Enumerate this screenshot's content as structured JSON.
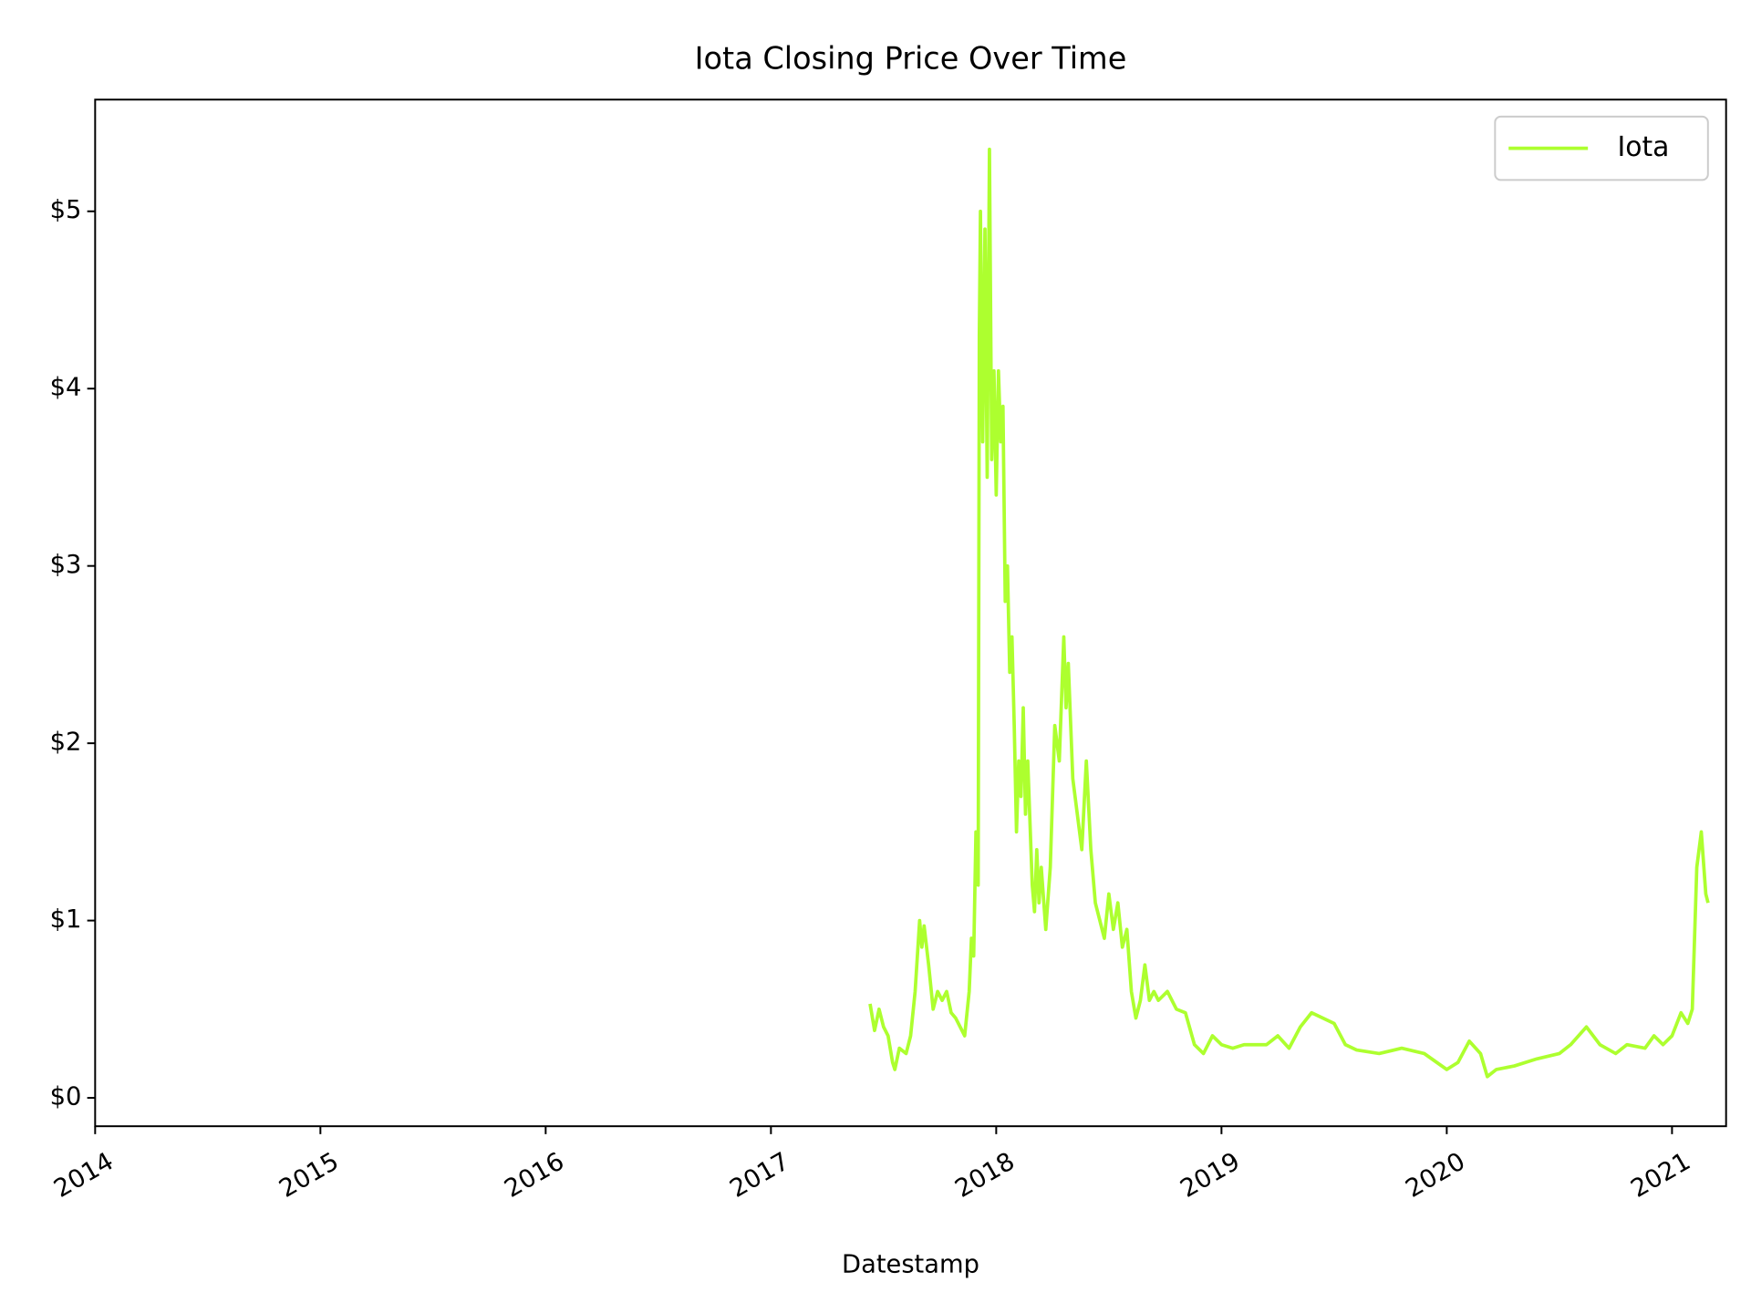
{
  "chart_data": {
    "type": "line",
    "title": "Iota Closing Price Over Time",
    "x_label": "Datestamp",
    "xlim": [
      2014,
      2021.24
    ],
    "xticks": [
      2014,
      2015,
      2016,
      2017,
      2018,
      2019,
      2020,
      2021
    ],
    "ylim": [
      -0.16,
      5.63
    ],
    "yticks": [
      {
        "value": 0,
        "label": "$0"
      },
      {
        "value": 1,
        "label": "$1"
      },
      {
        "value": 2,
        "label": "$2"
      },
      {
        "value": 3,
        "label": "$3"
      },
      {
        "value": 4,
        "label": "$4"
      },
      {
        "value": 5,
        "label": "$5"
      }
    ],
    "legend": "upper right",
    "grid": false,
    "x": [
      2017.44,
      2017.46,
      2017.48,
      2017.5,
      2017.52,
      2017.54,
      2017.55,
      2017.57,
      2017.6,
      2017.62,
      2017.64,
      2017.66,
      2017.67,
      2017.68,
      2017.7,
      2017.72,
      2017.74,
      2017.76,
      2017.78,
      2017.8,
      2017.82,
      2017.84,
      2017.86,
      2017.88,
      2017.89,
      2017.9,
      2017.91,
      2017.92,
      2017.925,
      2017.93,
      2017.94,
      2017.95,
      2017.96,
      2017.97,
      2017.98,
      2017.99,
      2018.0,
      2018.01,
      2018.02,
      2018.03,
      2018.04,
      2018.05,
      2018.06,
      2018.07,
      2018.08,
      2018.09,
      2018.1,
      2018.11,
      2018.12,
      2018.13,
      2018.14,
      2018.16,
      2018.17,
      2018.18,
      2018.19,
      2018.2,
      2018.22,
      2018.24,
      2018.26,
      2018.28,
      2018.3,
      2018.31,
      2018.32,
      2018.34,
      2018.36,
      2018.38,
      2018.4,
      2018.42,
      2018.44,
      2018.46,
      2018.48,
      2018.5,
      2018.52,
      2018.54,
      2018.56,
      2018.58,
      2018.6,
      2018.62,
      2018.64,
      2018.66,
      2018.68,
      2018.7,
      2018.72,
      2018.76,
      2018.8,
      2018.84,
      2018.88,
      2018.92,
      2018.96,
      2019.0,
      2019.05,
      2019.1,
      2019.2,
      2019.25,
      2019.3,
      2019.35,
      2019.4,
      2019.45,
      2019.5,
      2019.55,
      2019.6,
      2019.7,
      2019.8,
      2019.9,
      2020.0,
      2020.05,
      2020.1,
      2020.15,
      2020.18,
      2020.22,
      2020.3,
      2020.4,
      2020.5,
      2020.55,
      2020.62,
      2020.68,
      2020.75,
      2020.8,
      2020.88,
      2020.92,
      2020.96,
      2021.0,
      2021.04,
      2021.07,
      2021.09,
      2021.11,
      2021.13,
      2021.15,
      2021.16
    ],
    "series": [
      {
        "name": "Iota",
        "color": "#adff2f",
        "values": [
          0.53,
          0.38,
          0.5,
          0.4,
          0.35,
          0.2,
          0.16,
          0.28,
          0.25,
          0.35,
          0.6,
          1.0,
          0.85,
          0.97,
          0.75,
          0.5,
          0.6,
          0.55,
          0.6,
          0.48,
          0.45,
          0.4,
          0.35,
          0.6,
          0.9,
          0.8,
          1.5,
          1.2,
          4.3,
          5.0,
          3.7,
          4.9,
          3.5,
          5.35,
          3.6,
          4.1,
          3.4,
          4.1,
          3.7,
          3.9,
          2.8,
          3.0,
          2.4,
          2.6,
          2.1,
          1.5,
          1.9,
          1.7,
          2.2,
          1.6,
          1.9,
          1.2,
          1.05,
          1.4,
          1.1,
          1.3,
          0.95,
          1.3,
          2.1,
          1.9,
          2.6,
          2.2,
          2.45,
          1.8,
          1.6,
          1.4,
          1.9,
          1.4,
          1.1,
          1.0,
          0.9,
          1.15,
          0.95,
          1.1,
          0.85,
          0.95,
          0.6,
          0.45,
          0.55,
          0.75,
          0.55,
          0.6,
          0.55,
          0.6,
          0.5,
          0.48,
          0.3,
          0.25,
          0.35,
          0.3,
          0.28,
          0.3,
          0.3,
          0.35,
          0.28,
          0.4,
          0.48,
          0.45,
          0.42,
          0.3,
          0.27,
          0.25,
          0.28,
          0.25,
          0.16,
          0.2,
          0.32,
          0.25,
          0.12,
          0.16,
          0.18,
          0.22,
          0.25,
          0.3,
          0.4,
          0.3,
          0.25,
          0.3,
          0.28,
          0.35,
          0.3,
          0.35,
          0.48,
          0.42,
          0.5,
          1.3,
          1.5,
          1.15,
          1.1
        ]
      }
    ]
  }
}
